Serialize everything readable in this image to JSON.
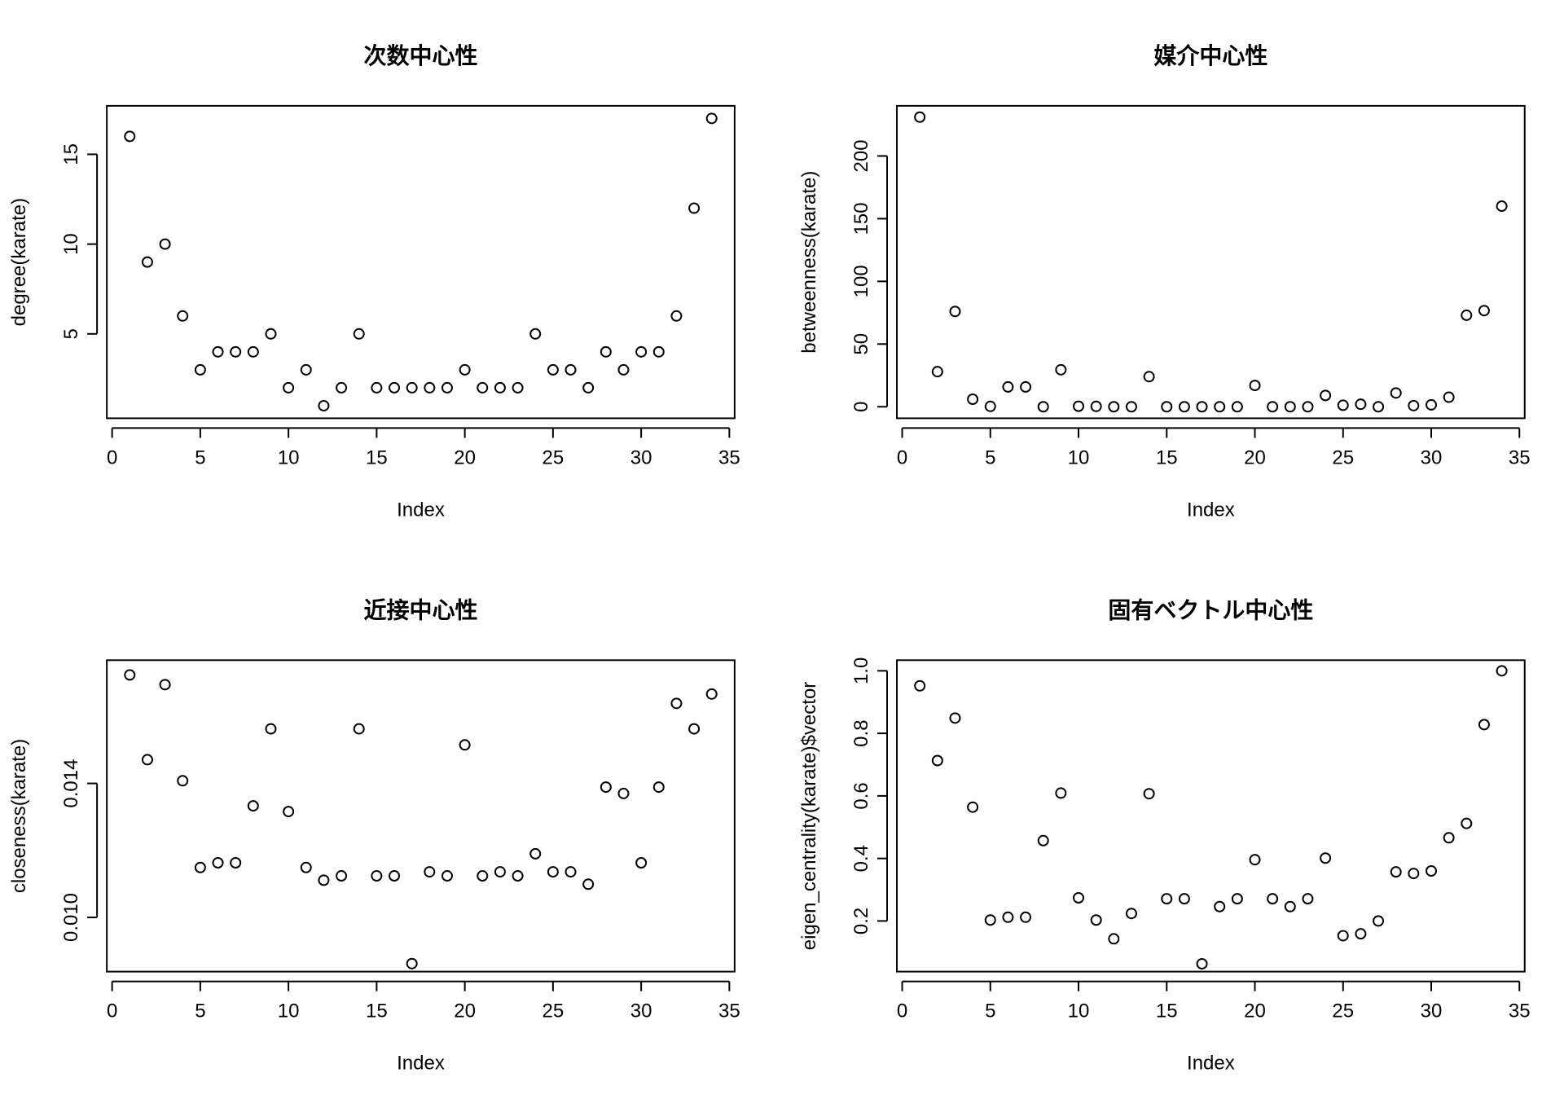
{
  "chart_data": [
    {
      "type": "scatter",
      "title": "次数中心性",
      "xlabel": "Index",
      "ylabel": "degree(karate)",
      "xlim": [
        -0.3,
        35.3
      ],
      "ylim": [
        0.3,
        17.7
      ],
      "xticks": [
        0,
        5,
        10,
        15,
        20,
        25,
        30,
        35
      ],
      "yticks": [
        5,
        10,
        15
      ],
      "x": [
        1,
        2,
        3,
        4,
        5,
        6,
        7,
        8,
        9,
        10,
        11,
        12,
        13,
        14,
        15,
        16,
        17,
        18,
        19,
        20,
        21,
        22,
        23,
        24,
        25,
        26,
        27,
        28,
        29,
        30,
        31,
        32,
        33,
        34
      ],
      "y": [
        16,
        9,
        10,
        6,
        3,
        4,
        4,
        4,
        5,
        2,
        3,
        1,
        2,
        5,
        2,
        2,
        2,
        2,
        2,
        3,
        2,
        2,
        2,
        5,
        3,
        3,
        2,
        4,
        3,
        4,
        4,
        6,
        12,
        17
      ],
      "marker": "open-circle",
      "grid": false
    },
    {
      "type": "scatter",
      "title": "媒介中心性",
      "xlabel": "Index",
      "ylabel": "betweenness(karate)",
      "xlim": [
        -0.3,
        35.3
      ],
      "ylim": [
        -9.2,
        240
      ],
      "xticks": [
        0,
        5,
        10,
        15,
        20,
        25,
        30,
        35
      ],
      "yticks": [
        0,
        50,
        100,
        150,
        200
      ],
      "x": [
        1,
        2,
        3,
        4,
        5,
        6,
        7,
        8,
        9,
        10,
        11,
        12,
        13,
        14,
        15,
        16,
        17,
        18,
        19,
        20,
        21,
        22,
        23,
        24,
        25,
        26,
        27,
        28,
        29,
        30,
        31,
        32,
        33,
        34
      ],
      "y": [
        231,
        28,
        76,
        6,
        0.3,
        15.8,
        15.8,
        0,
        29.5,
        0.4,
        0.3,
        0,
        0,
        24,
        0,
        0,
        0,
        0,
        0,
        17,
        0,
        0,
        0,
        9,
        1.2,
        2,
        0,
        11,
        0.9,
        1.5,
        7.6,
        73,
        76.7,
        160
      ],
      "marker": "open-circle",
      "grid": false
    },
    {
      "type": "scatter",
      "title": "近接中心性",
      "xlabel": "Index",
      "ylabel": "closeness(karate)",
      "xlim": [
        -0.3,
        35.3
      ],
      "ylim": [
        0.00838,
        0.01768
      ],
      "xticks": [
        0,
        5,
        10,
        15,
        20,
        25,
        30,
        35
      ],
      "yticks": [
        0.01,
        0.014
      ],
      "ytick_labels": [
        "0.010",
        "0.014"
      ],
      "x": [
        1,
        2,
        3,
        4,
        5,
        6,
        7,
        8,
        9,
        10,
        11,
        12,
        13,
        14,
        15,
        16,
        17,
        18,
        19,
        20,
        21,
        22,
        23,
        24,
        25,
        26,
        27,
        28,
        29,
        30,
        31,
        32,
        33,
        34
      ],
      "y": [
        0.01724,
        0.01471,
        0.01695,
        0.01408,
        0.01149,
        0.01163,
        0.01163,
        0.01333,
        0.01563,
        0.01316,
        0.01149,
        0.01111,
        0.01124,
        0.01563,
        0.01124,
        0.01124,
        0.00862,
        0.01136,
        0.01124,
        0.01515,
        0.01124,
        0.01136,
        0.01124,
        0.0119,
        0.01136,
        0.01136,
        0.01099,
        0.01389,
        0.0137,
        0.01163,
        0.01389,
        0.01639,
        0.01563,
        0.01667
      ],
      "marker": "open-circle",
      "grid": false
    },
    {
      "type": "scatter",
      "title": "固有ベクトル中心性",
      "xlabel": "Index",
      "ylabel": "eigen_centrality(karate)$vector",
      "xlim": [
        -0.3,
        35.3
      ],
      "ylim": [
        0.038,
        1.034
      ],
      "xticks": [
        0,
        5,
        10,
        15,
        20,
        25,
        30,
        35
      ],
      "yticks": [
        0.2,
        0.4,
        0.6,
        0.8,
        1.0
      ],
      "ytick_labels": [
        "0.2",
        "0.4",
        "0.6",
        "0.8",
        "1.0"
      ],
      "x": [
        1,
        2,
        3,
        4,
        5,
        6,
        7,
        8,
        9,
        10,
        11,
        12,
        13,
        14,
        15,
        16,
        17,
        18,
        19,
        20,
        21,
        22,
        23,
        24,
        25,
        26,
        27,
        28,
        29,
        30,
        31,
        32,
        33,
        34
      ],
      "y": [
        0.952,
        0.713,
        0.849,
        0.564,
        0.203,
        0.212,
        0.212,
        0.457,
        0.609,
        0.274,
        0.203,
        0.143,
        0.224,
        0.607,
        0.271,
        0.271,
        0.063,
        0.246,
        0.271,
        0.396,
        0.271,
        0.246,
        0.271,
        0.401,
        0.153,
        0.159,
        0.2,
        0.357,
        0.352,
        0.36,
        0.466,
        0.512,
        0.828,
        1.0
      ],
      "marker": "open-circle",
      "grid": false
    }
  ]
}
